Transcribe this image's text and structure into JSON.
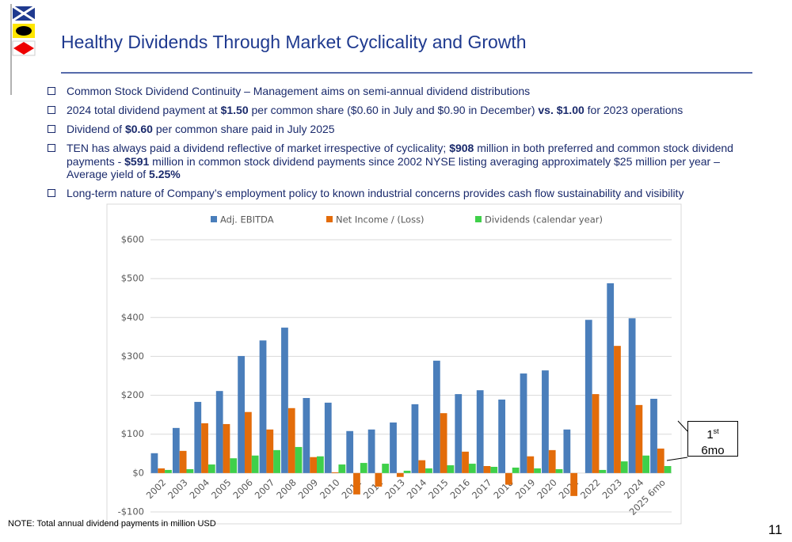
{
  "header": {
    "title": "Healthy Dividends Through Market Cyclicality and Growth"
  },
  "bullets": [
    [
      {
        "text": "Common Stock Dividend Continuity – Management aims on semi-annual dividend distributions"
      }
    ],
    [
      {
        "text": "2024 total dividend payment at "
      },
      {
        "text": "$1.50",
        "bold": true
      },
      {
        "text": " per common share ($0.60 in July and $0.90 in December) "
      },
      {
        "text": "vs. $1.00",
        "bold": true
      },
      {
        "text": " for 2023 operations"
      }
    ],
    [
      {
        "text": "Dividend of "
      },
      {
        "text": "$0.60",
        "bold": true
      },
      {
        "text": " per common share paid in July 2025"
      }
    ],
    [
      {
        "text": "TEN has always paid a dividend reflective of market irrespective of cyclicality; "
      },
      {
        "text": "$908",
        "bold": true
      },
      {
        "text": " million in both preferred and common stock dividend payments - "
      },
      {
        "text": "$591",
        "bold": true
      },
      {
        "text": " million in common stock dividend payments since 2002 NYSE listing averaging approximately $25 million per year – Average yield of "
      },
      {
        "text": "5.25%",
        "bold": true
      }
    ],
    [
      {
        "text": "Long-term nature of Company’s employment policy to known industrial concerns provides cash flow sustainability and visibility"
      }
    ]
  ],
  "chart_data": {
    "type": "bar",
    "categories": [
      "2002",
      "2003",
      "2004",
      "2005",
      "2006",
      "2007",
      "2008",
      "2009",
      "2010",
      "2011",
      "2012",
      "2013",
      "2014",
      "2015",
      "2016",
      "2017",
      "2018",
      "2019",
      "2020",
      "2021",
      "2022",
      "2023",
      "2024",
      "2025 6mo"
    ],
    "series": [
      {
        "name": "Adj. EBITDA",
        "color": "#4a7ebb",
        "values": [
          51,
          116,
          183,
          211,
          301,
          341,
          374,
          193,
          181,
          108,
          112,
          130,
          177,
          289,
          203,
          213,
          189,
          256,
          264,
          112,
          394,
          488,
          398,
          191
        ]
      },
      {
        "name": "Net Income / (Loss)",
        "color": "#e36c0a",
        "values": [
          12,
          57,
          128,
          126,
          157,
          112,
          167,
          41,
          2,
          -55,
          -35,
          -10,
          33,
          154,
          55,
          18,
          -30,
          43,
          59,
          -59,
          203,
          327,
          175,
          63
        ]
      },
      {
        "name": "Dividends (calendar year)",
        "color": "#3fd04a",
        "values": [
          8,
          10,
          22,
          38,
          45,
          59,
          67,
          43,
          22,
          26,
          24,
          6,
          12,
          20,
          24,
          16,
          14,
          12,
          10,
          0,
          8,
          30,
          45,
          18
        ]
      }
    ],
    "ylim": [
      -100,
      600
    ],
    "yticks": [
      {
        "value": -100,
        "label": "-$100"
      },
      {
        "value": 0,
        "label": "$0"
      },
      {
        "value": 100,
        "label": "$100"
      },
      {
        "value": 200,
        "label": "$200"
      },
      {
        "value": 300,
        "label": "$300"
      },
      {
        "value": 400,
        "label": "$400"
      },
      {
        "value": 500,
        "label": "$500"
      },
      {
        "value": 600,
        "label": "$600"
      }
    ],
    "grid": true,
    "legend": "top",
    "annotation": {
      "main": "1",
      "sup": "st",
      "line2": "6mo"
    }
  },
  "note": "NOTE: Total annual dividend payments in million USD",
  "page_number": "11"
}
